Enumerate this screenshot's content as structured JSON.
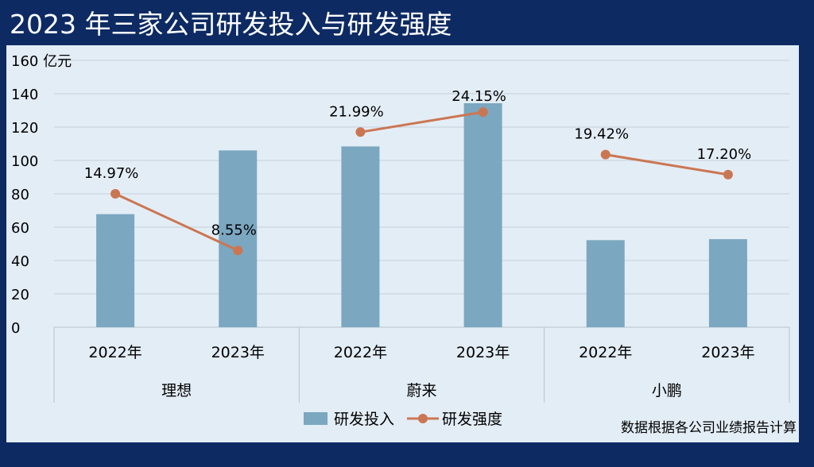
{
  "title": "2023 年三家公司研发投入与研发强度",
  "source_note": "数据根据各公司业绩报告计算",
  "colors": {
    "background": "#0d2a63",
    "panel": "#e3edf6",
    "bar": "#7ba7c0",
    "line": "#cb7653",
    "text": "#000000"
  },
  "chart_data": {
    "type": "bar",
    "title": "2023 年三家公司研发投入与研发强度",
    "y_unit": "亿元",
    "ylim": [
      0,
      160
    ],
    "yticks": [
      0,
      20,
      40,
      60,
      80,
      100,
      120,
      140,
      160
    ],
    "grid": true,
    "legend_position": "bottom",
    "groups": [
      {
        "name": "理想",
        "categories": [
          "2022年",
          "2023年"
        ]
      },
      {
        "name": "蔚来",
        "categories": [
          "2022年",
          "2023年"
        ]
      },
      {
        "name": "小鹏",
        "categories": [
          "2022年",
          "2023年"
        ]
      }
    ],
    "categories": [
      "2022年",
      "2023年",
      "2022年",
      "2023年",
      "2022年",
      "2023年"
    ],
    "series": [
      {
        "name": "研发投入",
        "type": "bar",
        "values": [
          67.8,
          106,
          108.4,
          134.3,
          52.2,
          52.8
        ]
      },
      {
        "name": "研发强度",
        "type": "line",
        "values": [
          14.97,
          8.55,
          21.99,
          24.15,
          19.42,
          17.2
        ],
        "labels": [
          "14.97%",
          "8.55%",
          "21.99%",
          "24.15%",
          "19.42%",
          "17.20%"
        ],
        "plot_positions": [
          80,
          46,
          117,
          129,
          103.5,
          91.5
        ]
      }
    ]
  }
}
